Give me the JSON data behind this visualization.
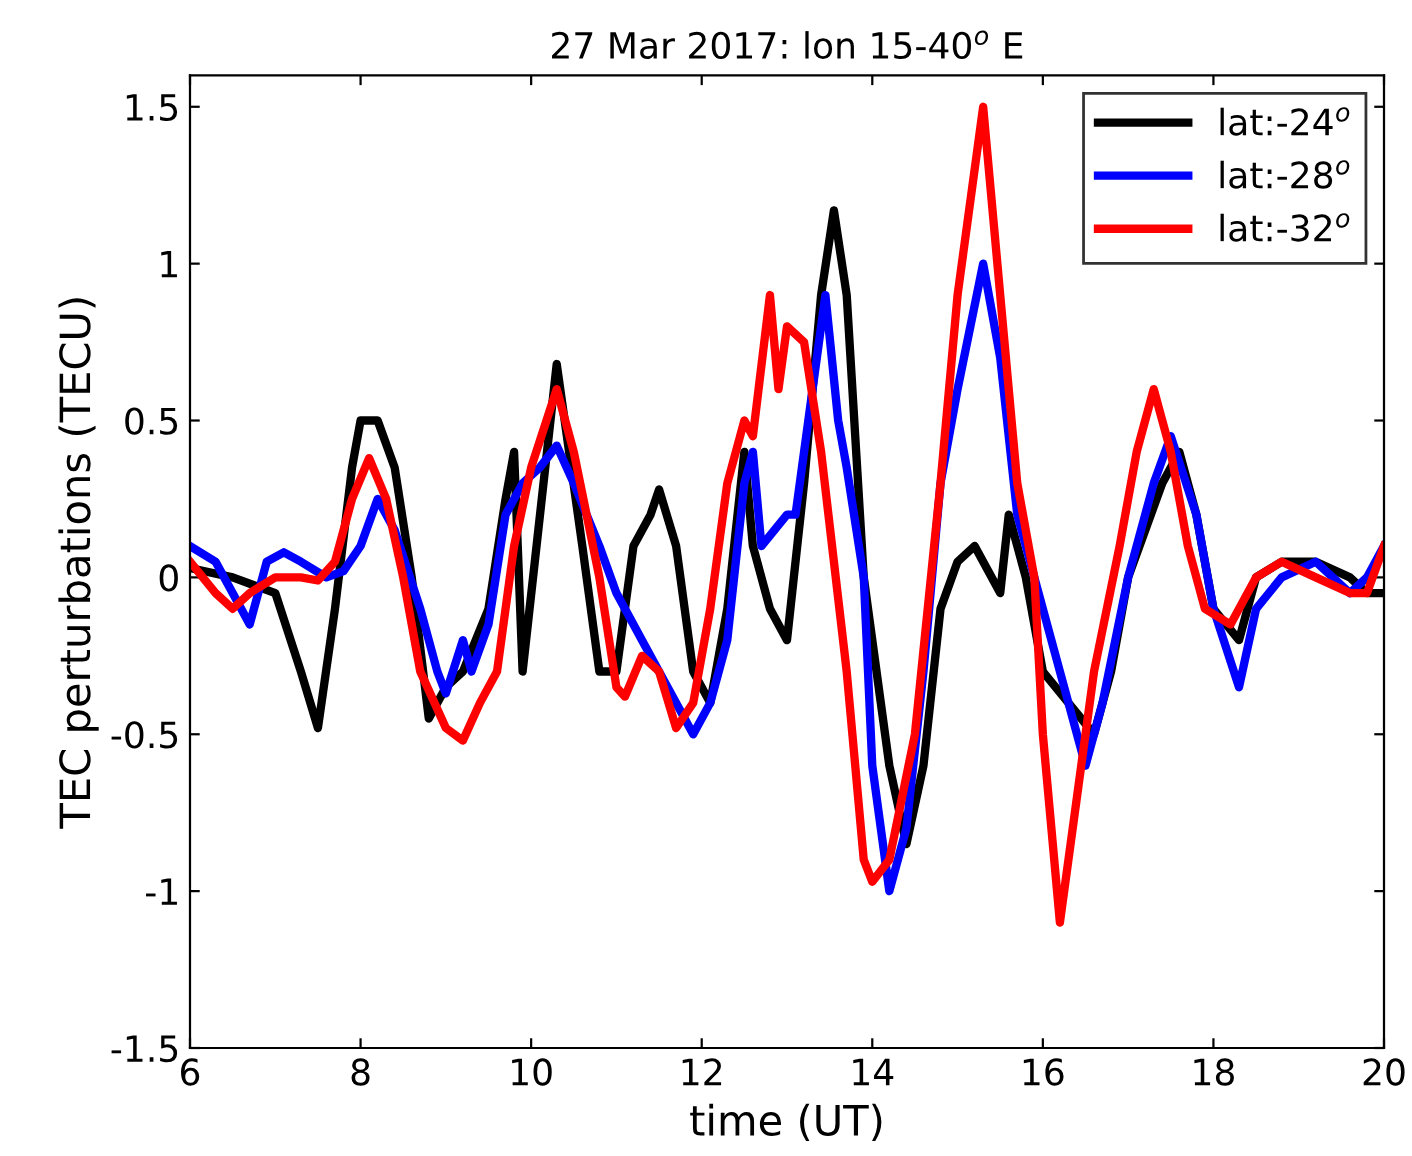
{
  "chart_data": {
    "type": "line",
    "title": "27 Mar 2017: lon 15-40$^{o}$ E",
    "xlabel": "time (UT)",
    "ylabel": "TEC perturbations (TECU)",
    "xlim": [
      6,
      20
    ],
    "xticks": [
      6,
      8,
      10,
      12,
      14,
      16,
      18,
      20
    ],
    "ylim": [
      -1.5,
      1.6
    ],
    "yticks": [
      -1.5,
      -1,
      -0.5,
      0,
      0.5,
      1,
      1.5
    ],
    "grid": false,
    "legend": "top right",
    "marker": "none",
    "line_style": "solid",
    "series": [
      {
        "name": "lat:-24$^{o}$",
        "color": "#000000",
        "x": [
          6.0,
          6.5,
          7.0,
          7.3,
          7.5,
          7.7,
          7.9,
          8.0,
          8.2,
          8.4,
          8.6,
          8.8,
          9.0,
          9.2,
          9.5,
          9.7,
          9.8,
          9.9,
          10.3,
          10.6,
          10.8,
          11.0,
          11.2,
          11.4,
          11.5,
          11.7,
          11.9,
          12.1,
          12.3,
          12.5,
          12.6,
          12.8,
          13.0,
          13.2,
          13.4,
          13.55,
          13.7,
          13.9,
          14.2,
          14.4,
          14.6,
          14.8,
          15.0,
          15.2,
          15.5,
          15.6,
          15.8,
          16.0,
          16.3,
          16.6,
          16.8,
          17.0,
          17.4,
          17.6,
          17.8,
          18.0,
          18.3,
          18.5,
          18.8,
          19.2,
          19.6,
          19.8,
          20.0
        ],
        "values": [
          0.03,
          0.0,
          -0.05,
          -0.3,
          -0.48,
          -0.1,
          0.35,
          0.5,
          0.5,
          0.35,
          0.0,
          -0.45,
          -0.35,
          -0.3,
          -0.1,
          0.25,
          0.4,
          -0.3,
          0.68,
          0.1,
          -0.3,
          -0.3,
          0.1,
          0.2,
          0.28,
          0.1,
          -0.3,
          -0.4,
          -0.1,
          0.4,
          0.1,
          -0.1,
          -0.2,
          0.3,
          0.9,
          1.17,
          0.9,
          0.0,
          -0.6,
          -0.85,
          -0.6,
          -0.1,
          0.05,
          0.1,
          -0.05,
          0.2,
          0.0,
          -0.3,
          -0.4,
          -0.5,
          -0.3,
          0.0,
          0.3,
          0.4,
          0.2,
          -0.1,
          -0.2,
          0.0,
          0.05,
          0.05,
          0.0,
          -0.05,
          -0.05
        ]
      },
      {
        "name": "lat:-28$^{o}$",
        "color": "#0000ff",
        "x": [
          6.0,
          6.3,
          6.5,
          6.7,
          6.9,
          7.1,
          7.3,
          7.6,
          7.8,
          8.0,
          8.2,
          8.4,
          8.7,
          8.9,
          9.0,
          9.2,
          9.3,
          9.5,
          9.7,
          9.9,
          10.1,
          10.3,
          10.5,
          10.8,
          11.0,
          11.3,
          11.6,
          11.9,
          12.1,
          12.3,
          12.5,
          12.6,
          12.7,
          13.0,
          13.1,
          13.3,
          13.45,
          13.6,
          13.7,
          13.9,
          14.0,
          14.2,
          14.4,
          14.6,
          14.8,
          15.0,
          15.3,
          15.5,
          15.7,
          16.0,
          16.2,
          16.5,
          16.7,
          17.0,
          17.3,
          17.5,
          17.8,
          18.0,
          18.3,
          18.5,
          18.8,
          19.2,
          19.6,
          19.8,
          20.0
        ],
        "values": [
          0.1,
          0.05,
          -0.05,
          -0.15,
          0.05,
          0.08,
          0.05,
          0.0,
          0.02,
          0.1,
          0.25,
          0.15,
          -0.1,
          -0.3,
          -0.37,
          -0.2,
          -0.3,
          -0.15,
          0.2,
          0.3,
          0.35,
          0.42,
          0.3,
          0.1,
          -0.05,
          -0.2,
          -0.35,
          -0.5,
          -0.4,
          -0.2,
          0.3,
          0.4,
          0.1,
          0.2,
          0.2,
          0.6,
          0.9,
          0.5,
          0.35,
          0.0,
          -0.6,
          -1.0,
          -0.8,
          -0.3,
          0.3,
          0.6,
          1.0,
          0.7,
          0.2,
          -0.1,
          -0.3,
          -0.6,
          -0.4,
          0.0,
          0.3,
          0.45,
          0.2,
          -0.1,
          -0.35,
          -0.1,
          0.0,
          0.05,
          -0.05,
          0.0,
          0.1
        ]
      },
      {
        "name": "lat:-32$^{o}$",
        "color": "#ff0000",
        "x": [
          6.0,
          6.3,
          6.5,
          6.7,
          7.0,
          7.3,
          7.5,
          7.7,
          7.9,
          8.1,
          8.3,
          8.5,
          8.7,
          9.0,
          9.2,
          9.4,
          9.6,
          9.8,
          10.0,
          10.3,
          10.5,
          10.8,
          11.0,
          11.1,
          11.3,
          11.5,
          11.7,
          11.9,
          12.1,
          12.3,
          12.5,
          12.6,
          12.8,
          12.9,
          13.0,
          13.2,
          13.4,
          13.7,
          13.9,
          14.0,
          14.2,
          14.5,
          14.8,
          15.0,
          15.2,
          15.3,
          15.5,
          15.7,
          15.9,
          16.0,
          16.1,
          16.2,
          16.4,
          16.6,
          16.9,
          17.1,
          17.3,
          17.5,
          17.7,
          17.9,
          18.2,
          18.5,
          18.8,
          19.2,
          19.6,
          19.8,
          20.0
        ],
        "values": [
          0.05,
          -0.05,
          -0.1,
          -0.05,
          0.0,
          0.0,
          -0.01,
          0.05,
          0.25,
          0.38,
          0.25,
          0.0,
          -0.3,
          -0.48,
          -0.52,
          -0.4,
          -0.3,
          0.1,
          0.35,
          0.6,
          0.4,
          0.0,
          -0.35,
          -0.38,
          -0.25,
          -0.3,
          -0.48,
          -0.4,
          -0.1,
          0.3,
          0.5,
          0.45,
          0.9,
          0.6,
          0.8,
          0.75,
          0.4,
          -0.3,
          -0.9,
          -0.97,
          -0.9,
          -0.5,
          0.3,
          0.9,
          1.3,
          1.5,
          0.9,
          0.3,
          0.0,
          -0.5,
          -0.8,
          -1.1,
          -0.7,
          -0.3,
          0.1,
          0.4,
          0.6,
          0.4,
          0.1,
          -0.1,
          -0.15,
          0.0,
          0.05,
          0.0,
          -0.05,
          -0.05,
          0.1
        ]
      }
    ]
  }
}
